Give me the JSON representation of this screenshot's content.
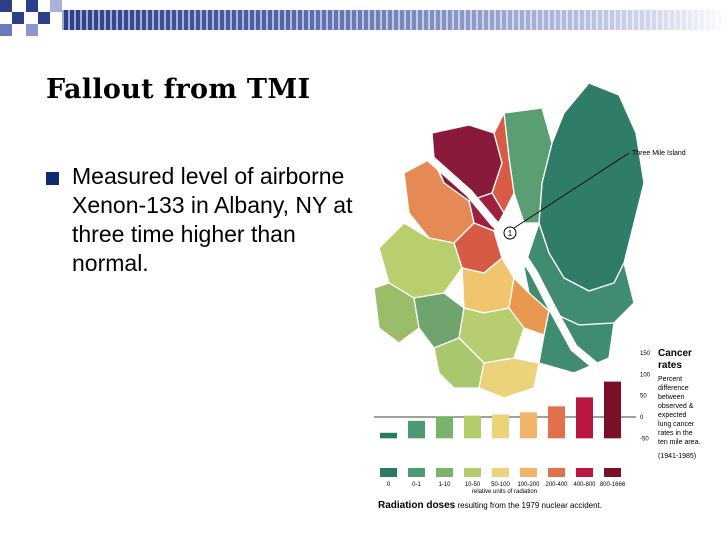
{
  "slide": {
    "title": "Fallout from TMI",
    "bullet": "Measured level of airborne Xenon-133 in Albany, NY at three time higher than normal."
  },
  "colors": {
    "header_blue": "#2e3f8a",
    "bullet": "#0f2a6e",
    "green_dark": "#2f7d68",
    "red_dark": "#7a0f2a"
  },
  "figure": {
    "map_label": "Three Mile Island",
    "tmi_marker": "1",
    "legend_title_line1": "Cancer",
    "legend_title_line2": "rates",
    "legend_desc": [
      "Percent",
      "difference",
      "between",
      "observed &",
      "expected",
      "lung cancer",
      "rates in the",
      "ten mile area."
    ],
    "legend_years": "(1941-1985)",
    "y_ticks": [
      "150",
      "100",
      "50",
      "0",
      "-50"
    ],
    "dose_categories": [
      "0",
      "0-1",
      "1-10",
      "10-50",
      "50-100",
      "100-200",
      "200-400",
      "400-800",
      "800-1666"
    ],
    "relative_units": "relative units of radiation",
    "caption_bold": "Radiation doses",
    "caption_rest": " resulting from the 1979 nuclear accident."
  },
  "chart_data": {
    "type": "bar",
    "categories": [
      "0",
      "0-1",
      "1-10",
      "10-50",
      "50-100",
      "100-200",
      "200-400",
      "400-800",
      "800-1666"
    ],
    "values": [
      -37,
      -9,
      2,
      3,
      6,
      11,
      25,
      46,
      83
    ],
    "colors": [
      "#2b7a68",
      "#4e9a72",
      "#79b36c",
      "#b4cc6c",
      "#ead37a",
      "#f2b468",
      "#e1714c",
      "#b8173f",
      "#7a0f2a"
    ],
    "ylim": [
      -50,
      150
    ],
    "title": "Cancer rates",
    "ylabel": "",
    "xlabel": "relative units of radiation"
  }
}
